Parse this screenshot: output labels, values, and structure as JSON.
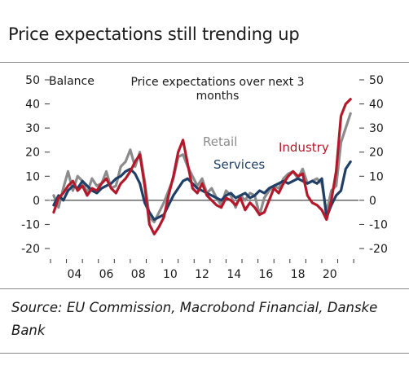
{
  "title": "Price expectations still trending up",
  "source": "Source: EU Commission, Macrobond Financial, Danske Bank",
  "chart_data": {
    "type": "line",
    "title": "Price expectations over next 3 months",
    "ylabel": "Balance",
    "ylim": [
      -20,
      50
    ],
    "yticks": [
      -20,
      -10,
      0,
      10,
      20,
      30,
      40,
      50
    ],
    "xlim": [
      2003.0,
      2022.3
    ],
    "xticks": [
      2004,
      2006,
      2008,
      2010,
      2012,
      2014,
      2016,
      2018,
      2020
    ],
    "xticklabels": [
      "04",
      "06",
      "08",
      "10",
      "12",
      "14",
      "16",
      "18",
      "20"
    ],
    "grid": false,
    "colors": {
      "Retail": "#8c8c8c",
      "Services": "#1f3f66",
      "Industry": "#b3192b",
      "Axis": "#333333"
    },
    "series": [
      {
        "name": "Retail",
        "x": [
          2003.2,
          2003.5,
          2003.8,
          2004.1,
          2004.4,
          2004.7,
          2005.0,
          2005.3,
          2005.6,
          2005.9,
          2006.2,
          2006.5,
          2006.8,
          2007.1,
          2007.4,
          2007.7,
          2008.0,
          2008.3,
          2008.6,
          2008.9,
          2009.2,
          2009.5,
          2009.8,
          2010.1,
          2010.4,
          2010.7,
          2011.0,
          2011.3,
          2011.6,
          2011.9,
          2012.2,
          2012.5,
          2012.8,
          2013.1,
          2013.4,
          2013.7,
          2014.0,
          2014.3,
          2014.6,
          2014.9,
          2015.2,
          2015.5,
          2015.8,
          2016.1,
          2016.4,
          2016.7,
          2017.0,
          2017.3,
          2017.6,
          2017.9,
          2018.2,
          2018.5,
          2018.8,
          2019.1,
          2019.4,
          2019.7,
          2020.0,
          2020.3,
          2020.6,
          2020.9,
          2021.2,
          2021.5,
          2021.8
        ],
        "values": [
          2,
          -3,
          5,
          12,
          4,
          10,
          8,
          3,
          9,
          6,
          7,
          12,
          5,
          6,
          14,
          16,
          21,
          14,
          20,
          8,
          -7,
          -9,
          -5,
          -1,
          4,
          9,
          18,
          19,
          14,
          10,
          6,
          9,
          3,
          5,
          1,
          -2,
          4,
          2,
          -3,
          2,
          0,
          3,
          2,
          -6,
          1,
          4,
          6,
          5,
          9,
          11,
          12,
          9,
          13,
          7,
          8,
          9,
          7,
          -5,
          4,
          6,
          24,
          30,
          36
        ]
      },
      {
        "name": "Services",
        "x": [
          2003.2,
          2003.5,
          2003.8,
          2004.1,
          2004.4,
          2004.7,
          2005.0,
          2005.3,
          2005.6,
          2005.9,
          2006.2,
          2006.5,
          2006.8,
          2007.1,
          2007.4,
          2007.7,
          2008.0,
          2008.3,
          2008.6,
          2008.9,
          2009.2,
          2009.5,
          2009.8,
          2010.1,
          2010.4,
          2010.7,
          2011.0,
          2011.3,
          2011.6,
          2011.9,
          2012.2,
          2012.5,
          2012.8,
          2013.1,
          2013.4,
          2013.7,
          2014.0,
          2014.3,
          2014.6,
          2014.9,
          2015.2,
          2015.5,
          2015.8,
          2016.1,
          2016.4,
          2016.7,
          2017.0,
          2017.3,
          2017.6,
          2017.9,
          2018.2,
          2018.5,
          2018.8,
          2019.1,
          2019.4,
          2019.7,
          2020.0,
          2020.3,
          2020.6,
          2020.9,
          2021.2,
          2021.5,
          2021.8
        ],
        "values": [
          -2,
          2,
          0,
          4,
          6,
          5,
          8,
          6,
          4,
          3,
          5,
          6,
          7,
          9,
          10,
          12,
          13,
          11,
          7,
          -1,
          -5,
          -8,
          -7,
          -6,
          -2,
          2,
          5,
          8,
          9,
          7,
          5,
          4,
          3,
          2,
          1,
          0,
          2,
          3,
          1,
          2,
          3,
          1,
          2,
          4,
          3,
          5,
          6,
          7,
          8,
          7,
          8,
          9,
          8,
          7,
          8,
          7,
          9,
          -7,
          -2,
          2,
          4,
          13,
          16
        ]
      },
      {
        "name": "Industry",
        "x": [
          2003.2,
          2003.5,
          2003.8,
          2004.1,
          2004.4,
          2004.7,
          2005.0,
          2005.3,
          2005.6,
          2005.9,
          2006.2,
          2006.5,
          2006.8,
          2007.1,
          2007.4,
          2007.7,
          2008.0,
          2008.3,
          2008.6,
          2008.9,
          2009.2,
          2009.5,
          2009.8,
          2010.1,
          2010.4,
          2010.7,
          2011.0,
          2011.3,
          2011.6,
          2011.9,
          2012.2,
          2012.5,
          2012.8,
          2013.1,
          2013.4,
          2013.7,
          2014.0,
          2014.3,
          2014.6,
          2014.9,
          2015.2,
          2015.5,
          2015.8,
          2016.1,
          2016.4,
          2016.7,
          2017.0,
          2017.3,
          2017.6,
          2017.9,
          2018.2,
          2018.5,
          2018.8,
          2019.1,
          2019.4,
          2019.7,
          2020.0,
          2020.3,
          2020.6,
          2020.9,
          2021.2,
          2021.5,
          2021.8
        ],
        "values": [
          -5,
          1,
          3,
          6,
          8,
          4,
          6,
          2,
          5,
          4,
          7,
          9,
          5,
          3,
          7,
          9,
          12,
          16,
          19,
          6,
          -10,
          -14,
          -11,
          -7,
          2,
          10,
          20,
          25,
          15,
          5,
          3,
          7,
          2,
          0,
          -2,
          -3,
          1,
          0,
          -2,
          1,
          -4,
          -1,
          -3,
          -6,
          -5,
          0,
          5,
          3,
          7,
          10,
          12,
          10,
          11,
          2,
          -1,
          -2,
          -4,
          -8,
          0,
          12,
          35,
          40,
          42
        ]
      }
    ],
    "labels": {
      "ylabel": "Balance",
      "chart_title": "Price expectations over next 3 months",
      "retail": "Retail",
      "services": "Services",
      "industry": "Industry"
    }
  }
}
